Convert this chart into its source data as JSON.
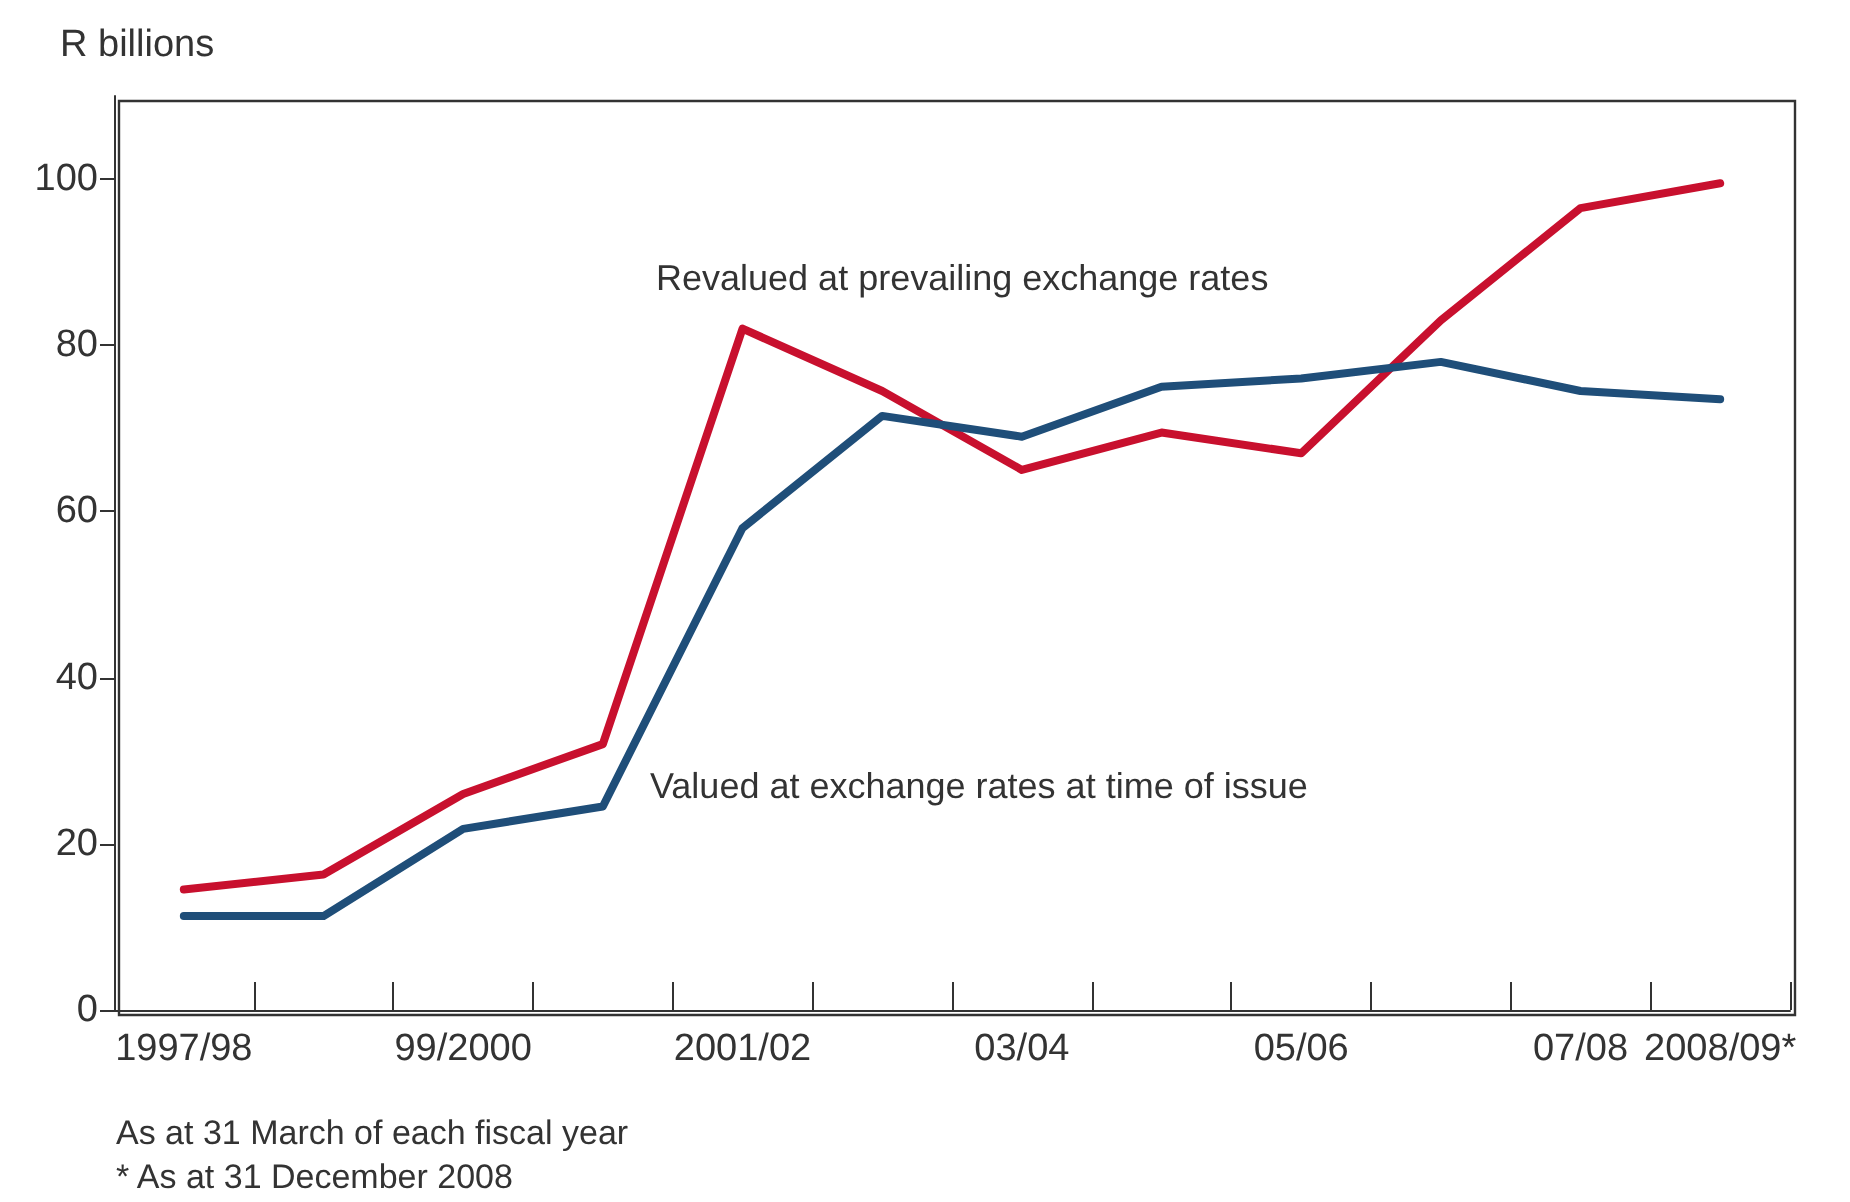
{
  "chart_data": {
    "type": "line",
    "ylabel": "R billions",
    "categories": [
      "1997/98",
      null,
      "99/2000",
      null,
      "2001/02",
      null,
      "03/04",
      null,
      "05/06",
      null,
      "07/08",
      "2008/09*"
    ],
    "series": [
      {
        "name": "Revalued at prevailing exchange rates",
        "color": "#c8102e",
        "values": [
          14.5,
          16.3,
          26,
          32,
          82,
          74.5,
          65,
          69.5,
          67,
          83,
          96.5,
          99.5
        ]
      },
      {
        "name": "Valued at exchange rates at time of issue",
        "color": "#1f4e79",
        "values": [
          11.3,
          11.3,
          21.8,
          24.5,
          58,
          71.5,
          69,
          75,
          76,
          78,
          74.5,
          73.5
        ]
      }
    ],
    "ylim": [
      0,
      110
    ],
    "yticks": [
      0,
      20,
      40,
      60,
      80,
      100
    ],
    "grid": false,
    "legend": false,
    "marker": "none",
    "line_style": "solid",
    "annotations": [
      "As at 31 March of each fiscal year",
      "* As at 31 December 2008"
    ]
  }
}
